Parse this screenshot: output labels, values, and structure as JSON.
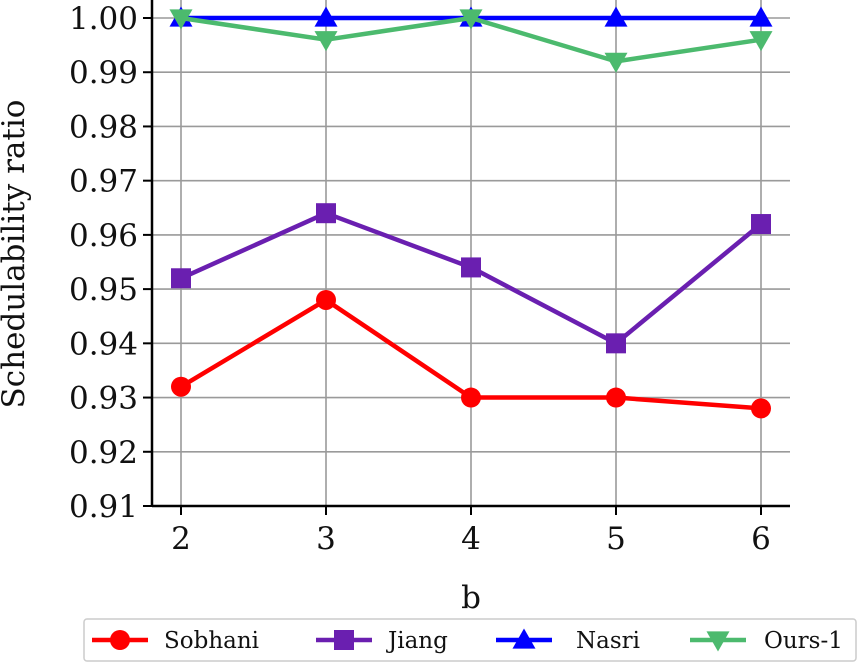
{
  "chart_data": {
    "type": "line",
    "xlabel": "b",
    "ylabel": "Schedulability ratio",
    "x": [
      2,
      3,
      4,
      5,
      6
    ],
    "xlim": [
      1.8,
      6.2
    ],
    "ylim": [
      0.91,
      1.0
    ],
    "xticks": [
      2,
      3,
      4,
      5,
      6
    ],
    "yticks": [
      0.91,
      0.92,
      0.93,
      0.94,
      0.95,
      0.96,
      0.97,
      0.98,
      0.99,
      1.0
    ],
    "yticklabels": [
      "0.91",
      "0.92",
      "0.93",
      "0.94",
      "0.95",
      "0.96",
      "0.97",
      "0.98",
      "0.99",
      "1.00"
    ],
    "grid": true,
    "legend_position": "bottom",
    "series": [
      {
        "name": "Sobhani",
        "values": [
          0.932,
          0.948,
          0.93,
          0.93,
          0.928
        ],
        "color": "#ff0000",
        "marker": "circle"
      },
      {
        "name": "Jiang",
        "values": [
          0.952,
          0.964,
          0.954,
          0.94,
          0.962
        ],
        "color": "#6a1fb0",
        "marker": "square"
      },
      {
        "name": "Nasri",
        "values": [
          1.0,
          1.0,
          1.0,
          1.0,
          1.0
        ],
        "color": "#0000ff",
        "marker": "triangle-up"
      },
      {
        "name": "Ours-1",
        "values": [
          1.0,
          0.996,
          1.0,
          0.992,
          0.996
        ],
        "color": "#4cba6e",
        "marker": "triangle-down"
      }
    ]
  }
}
